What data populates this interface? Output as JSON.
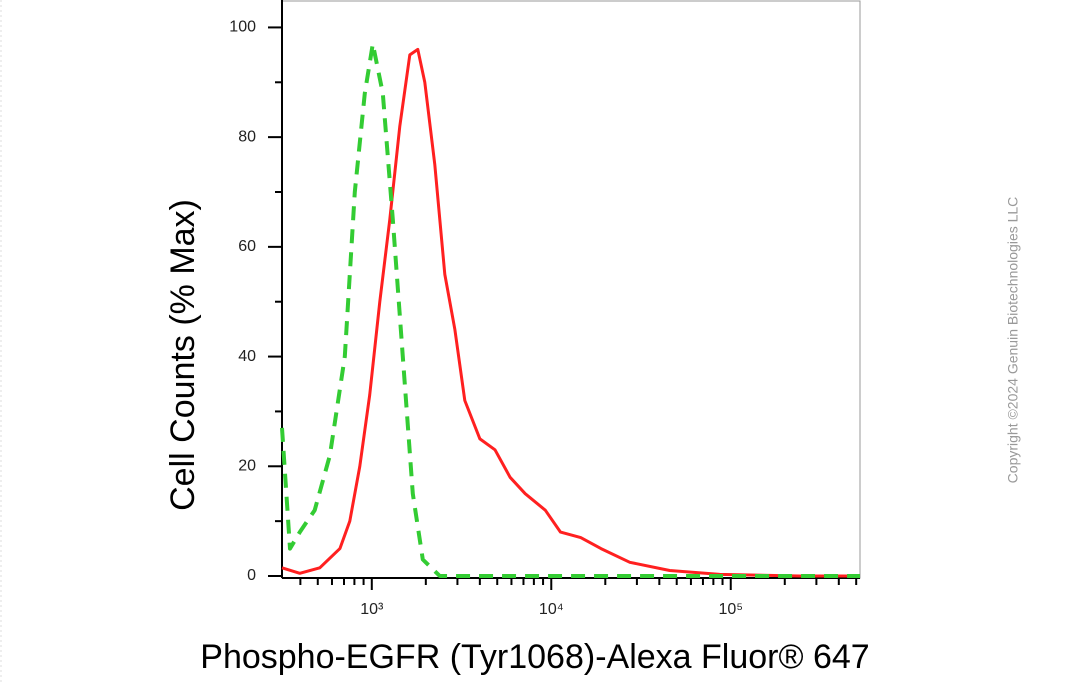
{
  "chart_data": {
    "type": "line",
    "x_label": "Phospho-EGFR (Tyr1068)-Alexa Fluor® 647",
    "y_label": "Cell Counts (% Max)",
    "copyright": "Copyright ©2024 Genuin Biotechnologies LLC",
    "x_scale": "log",
    "xlim": [
      316,
      525000
    ],
    "ylim": [
      0,
      105
    ],
    "xticks": [
      {
        "value": 1000,
        "label": "10³"
      },
      {
        "value": 10000,
        "label": "10⁴"
      },
      {
        "value": 100000,
        "label": "10⁵"
      }
    ],
    "xminor_ticks": [
      400,
      500,
      600,
      700,
      800,
      900,
      2000,
      3000,
      4000,
      5000,
      6000,
      7000,
      8000,
      9000,
      20000,
      30000,
      40000,
      50000,
      60000,
      70000,
      80000,
      90000,
      200000,
      300000,
      400000,
      500000
    ],
    "yticks": [
      0,
      20,
      40,
      60,
      80,
      100
    ],
    "yminor_ticks": [
      10,
      30,
      50,
      70,
      90
    ],
    "series": [
      {
        "color": "#ff2020",
        "dash": false,
        "x": [
          316,
          397,
          513,
          664,
          754,
          857,
          974,
          1108,
          1260,
          1432,
          1628,
          1805,
          1973,
          2243,
          2550,
          2900,
          3296,
          4002,
          4858,
          5898,
          7161,
          9261,
          11250,
          14590,
          18920,
          27370,
          45720,
          86790,
          242000,
          525000
        ],
        "values": [
          1.5,
          0.5,
          1.5,
          5,
          10,
          20,
          33,
          50,
          65,
          82,
          95,
          96,
          90,
          75,
          55,
          45,
          32,
          25,
          23,
          18,
          15,
          12,
          8,
          7,
          5,
          2.5,
          1,
          0.3,
          0,
          0
        ]
      },
      {
        "color": "#33cc33",
        "dash": true,
        "x": [
          316,
          350,
          397,
          481,
          584,
          707,
          804,
          914,
          1013,
          1152,
          1309,
          1488,
          1692,
          1923,
          2393,
          525000
        ],
        "values": [
          27,
          5,
          8,
          12,
          22,
          40,
          70,
          88,
          97,
          88,
          65,
          40,
          15,
          3,
          0,
          0
        ]
      }
    ]
  }
}
